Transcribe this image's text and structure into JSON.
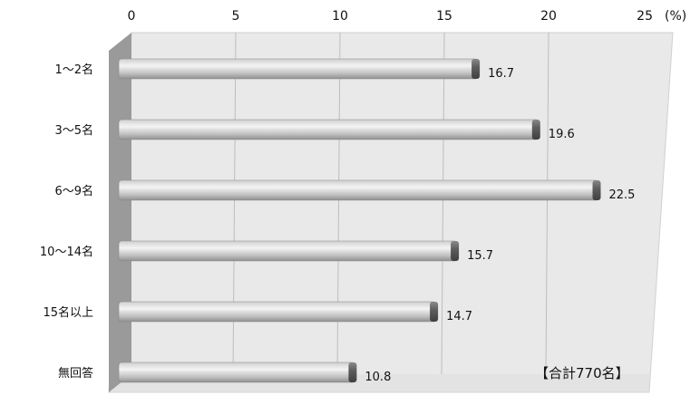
{
  "chart_data": {
    "type": "bar",
    "orientation": "horizontal",
    "categories": [
      "1〜2名",
      "3〜5名",
      "6〜9名",
      "10〜14名",
      "15名以上",
      "無回答"
    ],
    "values": [
      16.7,
      19.6,
      22.5,
      15.7,
      14.7,
      10.8
    ],
    "value_labels": [
      "16.7",
      "19.6",
      "22.5",
      "15.7",
      "14.7",
      "10.8"
    ],
    "xlim": [
      0,
      25
    ],
    "x_ticks": [
      0,
      5,
      10,
      15,
      20,
      25
    ],
    "x_tick_labels": [
      "0",
      "5",
      "10",
      "15",
      "20",
      "25"
    ],
    "unit": "(%)",
    "annotation": "【合計770名】",
    "grid": true,
    "colors": {
      "plot_bg": "#e9e9e9",
      "side_wall": "#9a9a9a",
      "bar_light": "#f2f2f2",
      "bar_dark": "#a8a8a8",
      "bar_end": "#6f6f6f",
      "grid": "#bdbdbd"
    }
  }
}
